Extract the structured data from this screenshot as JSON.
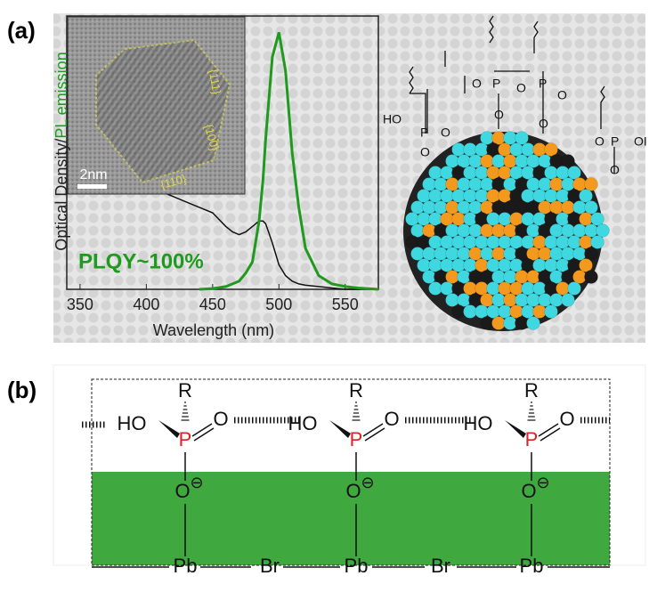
{
  "chart_data": {
    "type": "line",
    "xlabel": "Wavelength (nm)",
    "ylabel": [
      "Optical Density/",
      "PL emission"
    ],
    "annotation": "PLQY~100%",
    "x": [
      410,
      420,
      430,
      440,
      450,
      460,
      465,
      470,
      475,
      480,
      485,
      488,
      490,
      495,
      500,
      505,
      510,
      515,
      520,
      530,
      540,
      550,
      560,
      575
    ],
    "series": [
      {
        "color": "#111111",
        "values": [
          0.36,
          0.34,
          0.32,
          0.3,
          0.28,
          0.23,
          0.21,
          0.2,
          0.21,
          0.23,
          0.25,
          0.25,
          0.24,
          0.17,
          0.09,
          0.05,
          0.03,
          0.02,
          0.015,
          0.01,
          0.005,
          0,
          0,
          0
        ]
      },
      {
        "color": "#1f9a1f",
        "values": [
          null,
          null,
          null,
          0,
          0.003,
          0.01,
          0.02,
          0.03,
          0.06,
          0.1,
          0.25,
          0.4,
          0.55,
          0.85,
          0.94,
          0.8,
          0.5,
          0.3,
          0.15,
          0.05,
          0.02,
          0.01,
          0.005,
          0
        ]
      }
    ],
    "xlim": [
      340,
      575
    ],
    "xticks": [
      350,
      400,
      450,
      500,
      550
    ],
    "ylim": [
      0,
      1
    ]
  },
  "figure": {
    "panel_a": {
      "label": "(a)",
      "scale_bar": "2nm",
      "facets": [
        "{111}",
        "{100}",
        "{110}"
      ],
      "ligand": {
        "ho": "HO",
        "p": "P",
        "o": "O",
        "oh": "OI"
      }
    },
    "panel_b": {
      "label": "(b)",
      "r": "R",
      "ho": "HO",
      "p": "P",
      "o": "O",
      "charge": "⊖",
      "pb": "Pb",
      "br": "Br"
    }
  }
}
